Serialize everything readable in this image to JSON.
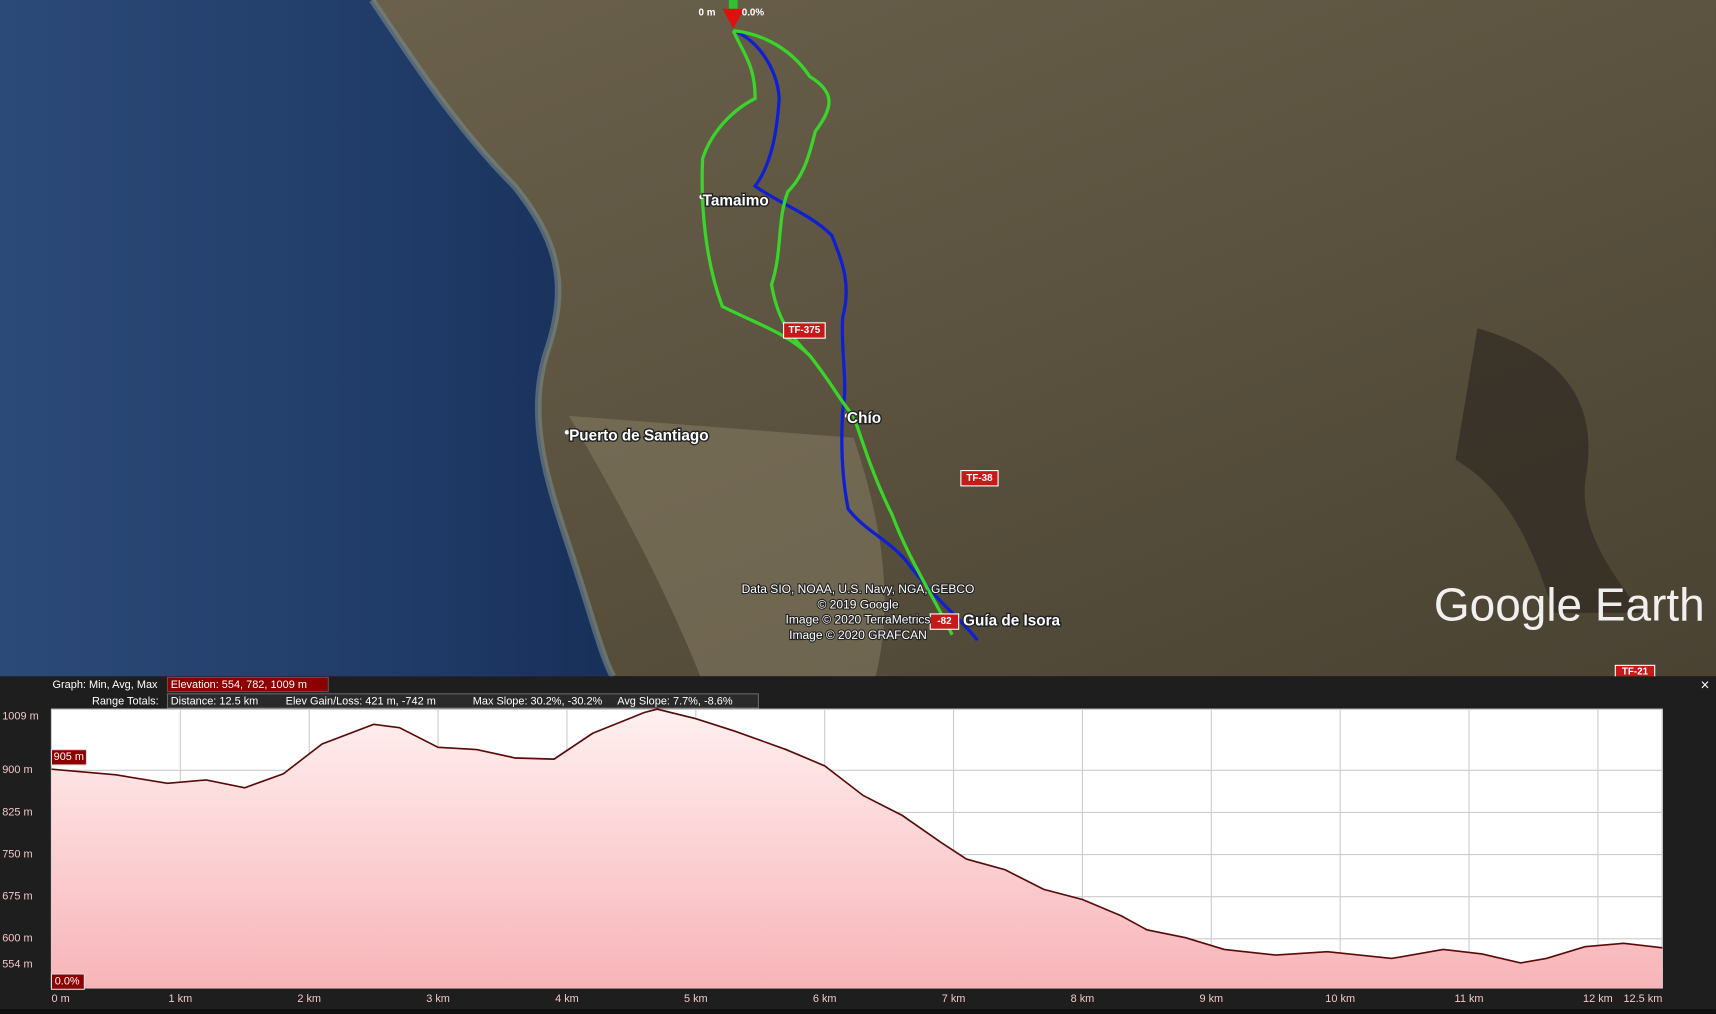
{
  "map": {
    "places": [
      "Tamaimo",
      "Chío",
      "Puerto de Santiago",
      "Guía de Isora"
    ],
    "roads": [
      "TF-375",
      "TF-38",
      "-82",
      "TF-21"
    ],
    "attribution": [
      "Data SIO, NOAA, U.S. Navy, NGA, GEBCO",
      "© 2019 Google",
      "Image © 2020 TerraMetrics",
      "Image © 2020 GRAFCAN"
    ],
    "logo": "Google Earth",
    "marker_distance": "0 m",
    "marker_slope": "0.0%"
  },
  "stats": {
    "graph": "Graph: Min, Avg, Max",
    "elevation": "Elevation: 554, 782, 1009 m",
    "range": "Range Totals:",
    "distance": "Distance: 12.5 km",
    "gain_loss": "Elev Gain/Loss: 421 m, -742 m",
    "max_slope": "Max Slope: 30.2%, -30.2%",
    "avg_slope": "Avg Slope: 7.7%, -8.6%",
    "close": "×"
  },
  "cursor": {
    "elevation": "905 m",
    "slope": "0.0%"
  },
  "chart_data": {
    "type": "area",
    "color": "#5a0a0a",
    "x": [
      0,
      0.5,
      0.9,
      1.2,
      1.5,
      1.8,
      2.1,
      2.5,
      2.7,
      3.0,
      3.3,
      3.6,
      3.9,
      4.2,
      4.6,
      4.7,
      5.0,
      5.3,
      5.7,
      6.0,
      6.3,
      6.6,
      6.9,
      7.1,
      7.4,
      7.7,
      8.0,
      8.3,
      8.5,
      8.8,
      9.1,
      9.5,
      9.9,
      10.4,
      10.8,
      11.1,
      11.4,
      11.6,
      11.9,
      12.2,
      12.5
    ],
    "values": [
      902,
      892,
      877,
      883,
      869,
      894,
      947,
      982,
      976,
      941,
      937,
      922,
      920,
      966,
      1003,
      1009,
      992,
      970,
      937,
      908,
      855,
      820,
      772,
      742,
      723,
      688,
      670,
      641,
      616,
      602,
      581,
      571,
      577,
      565,
      581,
      573,
      557,
      565,
      586,
      592,
      584
    ],
    "xlim": [
      0,
      12.5
    ],
    "ylim": [
      512,
      1009
    ],
    "xticks": [
      {
        "value": 0,
        "label": "0 m"
      },
      {
        "value": 1,
        "label": "1 km"
      },
      {
        "value": 2,
        "label": "2 km"
      },
      {
        "value": 3,
        "label": "3 km"
      },
      {
        "value": 4,
        "label": "4 km"
      },
      {
        "value": 5,
        "label": "5 km"
      },
      {
        "value": 6,
        "label": "6 km"
      },
      {
        "value": 7,
        "label": "7 km"
      },
      {
        "value": 8,
        "label": "8 km"
      },
      {
        "value": 9,
        "label": "9 km"
      },
      {
        "value": 10,
        "label": "10 km"
      },
      {
        "value": 11,
        "label": "11 km"
      },
      {
        "value": 12,
        "label": "12 km"
      },
      {
        "value": 12.5,
        "label": "12.5 km"
      }
    ],
    "yticks": [
      {
        "value": 1009,
        "label": "1009 m"
      },
      {
        "value": 900,
        "label": "900 m"
      },
      {
        "value": 825,
        "label": "825 m"
      },
      {
        "value": 750,
        "label": "750 m"
      },
      {
        "value": 675,
        "label": "675 m"
      },
      {
        "value": 600,
        "label": "600 m"
      },
      {
        "value": 554,
        "label": "554 m"
      }
    ],
    "grid": true
  }
}
